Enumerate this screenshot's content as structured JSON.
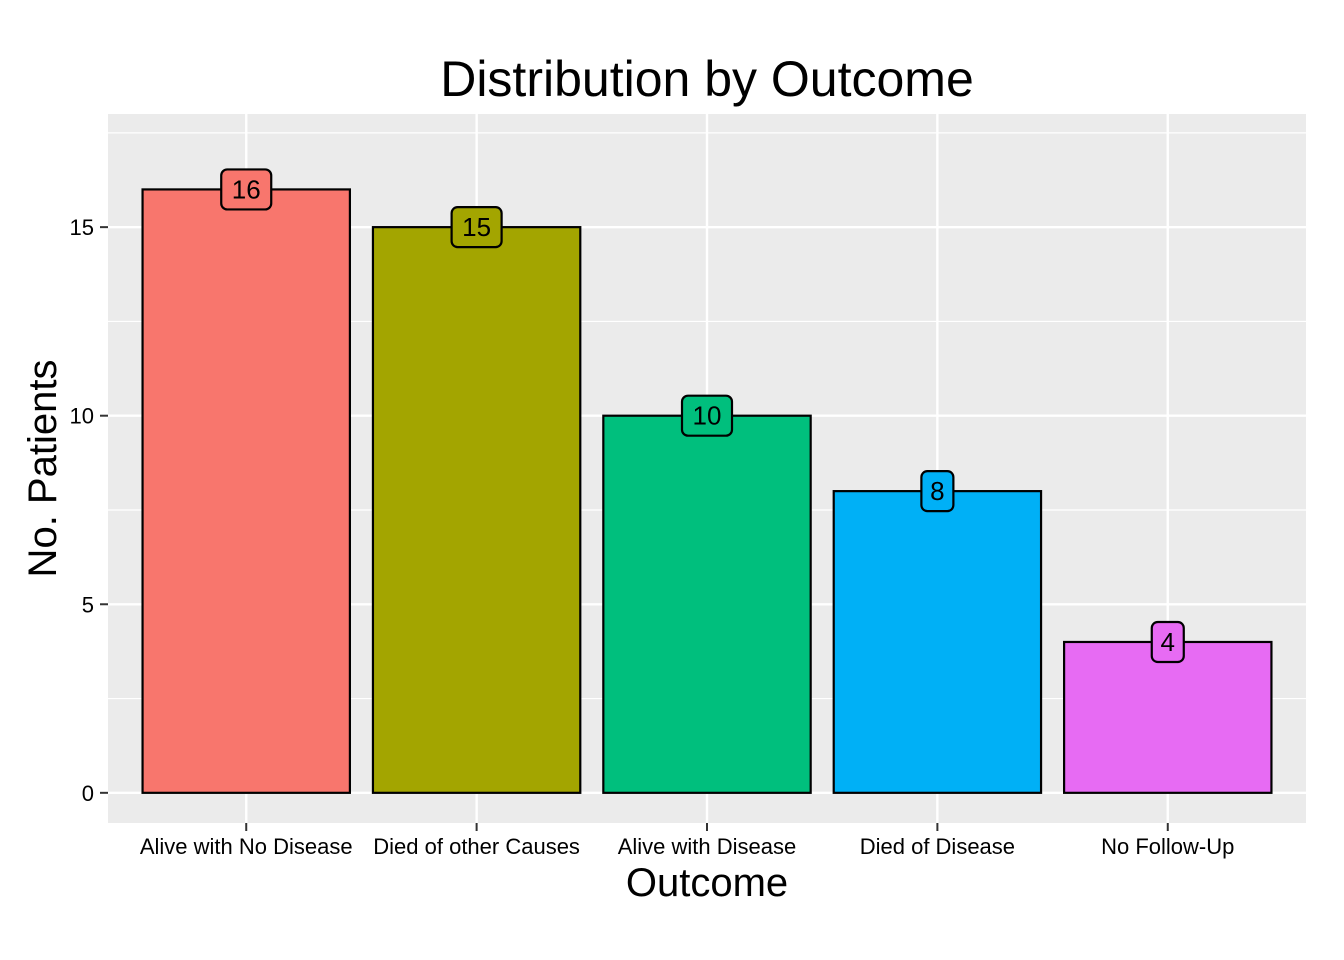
{
  "chart_data": {
    "type": "bar",
    "title": "Distribution by Outcome",
    "xlabel": "Outcome",
    "ylabel": "No. Patients",
    "categories": [
      "Alive with No Disease",
      "Died of other Causes",
      "Alive with Disease",
      "Died of Disease",
      "No Follow-Up"
    ],
    "values": [
      16,
      15,
      10,
      8,
      4
    ],
    "data_labels": [
      "16",
      "15",
      "10",
      "8",
      "4"
    ],
    "colors": [
      "#F8766D",
      "#A3A500",
      "#00BF7D",
      "#00B0F6",
      "#E76BF3"
    ],
    "ylim": [
      -0.8,
      18
    ],
    "yticks": [
      0,
      5,
      10,
      15
    ],
    "ytick_labels": [
      "0",
      "5",
      "10",
      "15"
    ],
    "grid": true,
    "legend": "none",
    "panel_background": "#EBEBEB",
    "grid_color": "#FFFFFF",
    "bar_outline": "#000000"
  }
}
